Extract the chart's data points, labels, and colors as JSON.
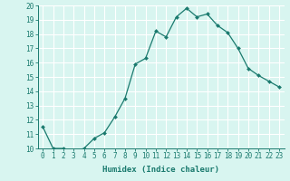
{
  "xlabel": "Humidex (Indice chaleur)",
  "ylabel": "",
  "x": [
    0,
    1,
    2,
    3,
    4,
    5,
    6,
    7,
    8,
    9,
    10,
    11,
    12,
    13,
    14,
    15,
    16,
    17,
    18,
    19,
    20,
    21,
    22,
    23
  ],
  "y": [
    11.5,
    10.0,
    10.0,
    9.8,
    10.0,
    10.7,
    11.1,
    12.2,
    13.5,
    15.9,
    16.3,
    18.2,
    17.8,
    19.2,
    19.8,
    19.2,
    19.4,
    18.6,
    18.1,
    17.0,
    15.6,
    15.1,
    14.7,
    14.3
  ],
  "line_color": "#1a7a6e",
  "marker": "D",
  "marker_size": 2.0,
  "background_color": "#d8f5f0",
  "grid_color": "#ffffff",
  "ylim": [
    10,
    20
  ],
  "xlim": [
    -0.5,
    23.5
  ],
  "yticks": [
    10,
    11,
    12,
    13,
    14,
    15,
    16,
    17,
    18,
    19,
    20
  ],
  "xticks": [
    0,
    1,
    2,
    3,
    4,
    5,
    6,
    7,
    8,
    9,
    10,
    11,
    12,
    13,
    14,
    15,
    16,
    17,
    18,
    19,
    20,
    21,
    22,
    23
  ],
  "tick_color": "#1a7a6e",
  "label_fontsize": 6.5,
  "tick_fontsize": 5.5,
  "linewidth": 0.9
}
